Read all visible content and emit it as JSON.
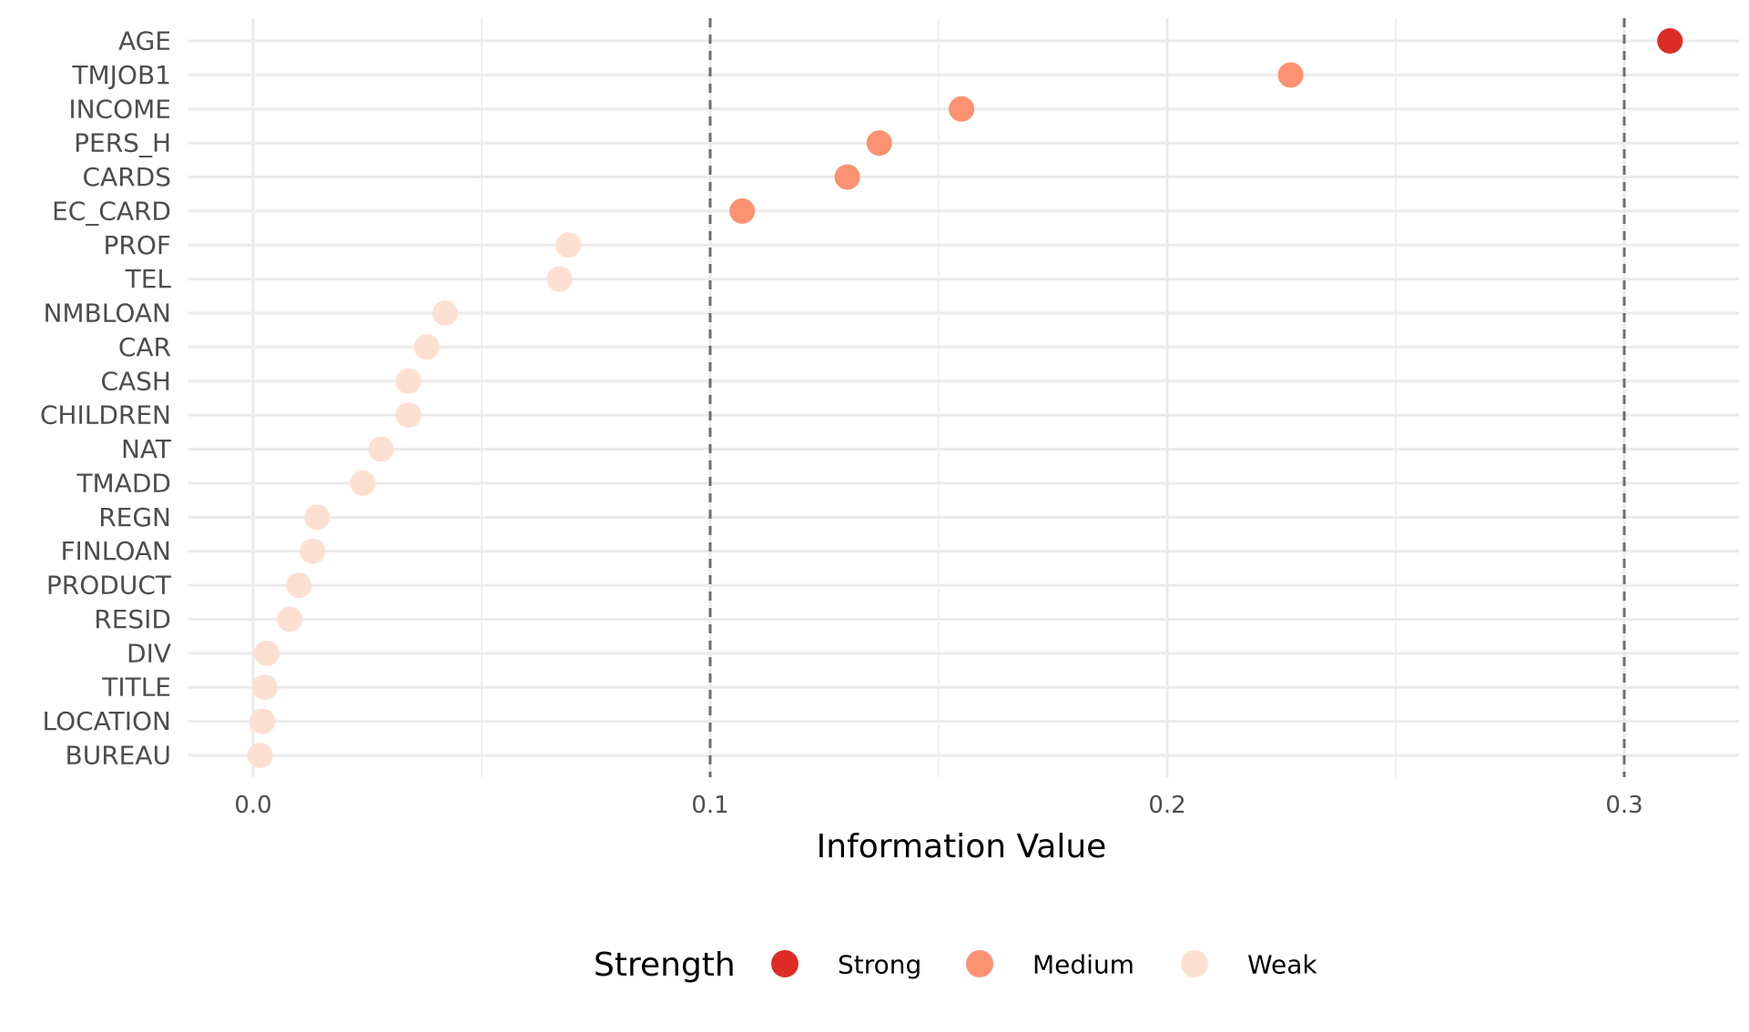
{
  "chart_data": {
    "type": "scatter",
    "title": "",
    "xlabel": "Information Value",
    "ylabel": "",
    "xlim": [
      -0.015,
      0.325
    ],
    "x_ticks": [
      0.0,
      0.1,
      0.2,
      0.3
    ],
    "x_tick_labels": [
      "0.0",
      "0.1",
      "0.2",
      "0.3"
    ],
    "reference_lines": [
      0.1,
      0.3
    ],
    "grid": true,
    "legend": {
      "title": "Strength",
      "position": "bottom",
      "entries": [
        {
          "label": "Strong",
          "color": "#de2d26"
        },
        {
          "label": "Medium",
          "color": "#fc9272"
        },
        {
          "label": "Weak",
          "color": "#fee0d2"
        }
      ]
    },
    "categories": [
      "AGE",
      "TMJOB1",
      "INCOME",
      "PERS_H",
      "CARDS",
      "EC_CARD",
      "PROF",
      "TEL",
      "NMBLOAN",
      "CAR",
      "CASH",
      "CHILDREN",
      "NAT",
      "TMADD",
      "REGN",
      "FINLOAN",
      "PRODUCT",
      "RESID",
      "DIV",
      "TITLE",
      "LOCATION",
      "BUREAU"
    ],
    "values": [
      0.31,
      0.227,
      0.155,
      0.137,
      0.13,
      0.107,
      0.069,
      0.067,
      0.042,
      0.038,
      0.034,
      0.034,
      0.028,
      0.024,
      0.014,
      0.013,
      0.01,
      0.008,
      0.003,
      0.0025,
      0.002,
      0.0015
    ],
    "strength": [
      "Strong",
      "Medium",
      "Medium",
      "Medium",
      "Medium",
      "Medium",
      "Weak",
      "Weak",
      "Weak",
      "Weak",
      "Weak",
      "Weak",
      "Weak",
      "Weak",
      "Weak",
      "Weak",
      "Weak",
      "Weak",
      "Weak",
      "Weak",
      "Weak",
      "Weak"
    ]
  }
}
